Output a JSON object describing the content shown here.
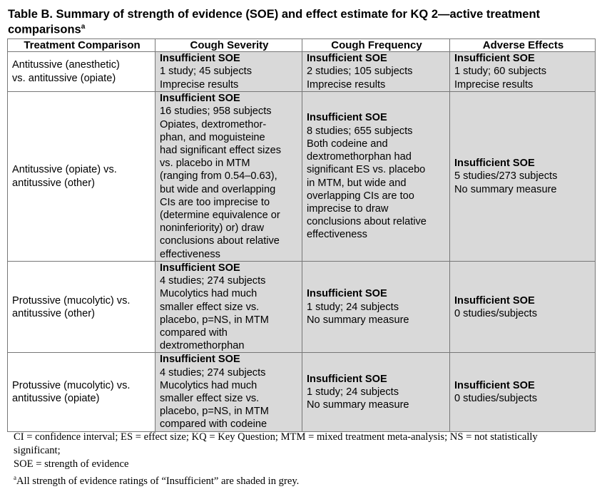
{
  "title": "Table B. Summary of strength of evidence (SOE) and effect estimate for KQ 2—active treatment comparisons",
  "title_sup": "a",
  "headers": [
    "Treatment Comparison",
    "Cough Severity",
    "Cough Frequency",
    "Adverse Effects"
  ],
  "rows": [
    {
      "comparison": [
        "Antitussive (anesthetic)",
        "vs. antitussive (opiate)"
      ],
      "cells": [
        {
          "soe": "Insufficient SOE",
          "lines": [
            "1 study; 45 subjects",
            "Imprecise results"
          ]
        },
        {
          "soe": "Insufficient SOE",
          "lines": [
            "2 studies; 105 subjects",
            "Imprecise results"
          ]
        },
        {
          "soe": "Insufficient SOE",
          "lines": [
            "1 study; 60 subjects",
            "Imprecise results"
          ]
        }
      ]
    },
    {
      "comparison": [
        "Antitussive (opiate) vs.",
        "antitussive (other)"
      ],
      "cells": [
        {
          "soe": "Insufficient SOE",
          "lines": [
            "16 studies; 958 subjects",
            "Opiates, dextromethor-",
            "phan, and moguisteine",
            "had significant effect sizes",
            "vs. placebo in MTM",
            "(ranging from 0.54–0.63),",
            "but wide and overlapping",
            "CIs are too imprecise to",
            "(determine equivalence or",
            "noninferiority) or) draw",
            "conclusions about relative",
            "effectiveness"
          ]
        },
        {
          "soe": "Insufficient SOE",
          "lines": [
            "8 studies; 655 subjects",
            "Both codeine and",
            "dextromethorphan had",
            "significant ES vs. placebo",
            "in MTM, but wide and",
            "overlapping CIs are too",
            "imprecise to draw",
            "conclusions about relative",
            "effectiveness"
          ]
        },
        {
          "soe": "Insufficient SOE",
          "lines": [
            "5 studies/273 subjects",
            "No summary measure"
          ]
        }
      ]
    },
    {
      "comparison": [
        "Protussive (mucolytic) vs.",
        "antitussive (other)"
      ],
      "cells": [
        {
          "soe": "Insufficient SOE",
          "lines": [
            "4 studies; 274 subjects",
            "Mucolytics had much",
            "smaller effect size vs.",
            "placebo, p=NS, in MTM",
            "compared with",
            "dextromethorphan"
          ]
        },
        {
          "soe": "Insufficient SOE",
          "lines": [
            "1 study; 24 subjects",
            "No summary measure"
          ]
        },
        {
          "soe": "Insufficient SOE",
          "lines": [
            "0 studies/subjects"
          ]
        }
      ]
    },
    {
      "comparison": [
        "Protussive (mucolytic) vs.",
        "antitussive (opiate)"
      ],
      "cells": [
        {
          "soe": "Insufficient SOE",
          "lines": [
            "4 studies; 274 subjects",
            "Mucolytics had much",
            "smaller effect size vs.",
            "placebo, p=NS, in MTM",
            "compared with codeine"
          ]
        },
        {
          "soe": "Insufficient SOE",
          "lines": [
            "1 study; 24 subjects",
            "No summary measure"
          ]
        },
        {
          "soe": "Insufficient SOE",
          "lines": [
            "0 studies/subjects"
          ]
        }
      ]
    }
  ],
  "footnotes": {
    "abbrev": "CI = confidence interval; ES = effect size; KQ = Key Question; MTM = mixed treatment meta-analysis; NS = not statistically significant;",
    "soe": "SOE = strength of evidence",
    "note_sup": "a",
    "note": "All strength of evidence ratings of “Insufficient” are shaded in grey."
  }
}
